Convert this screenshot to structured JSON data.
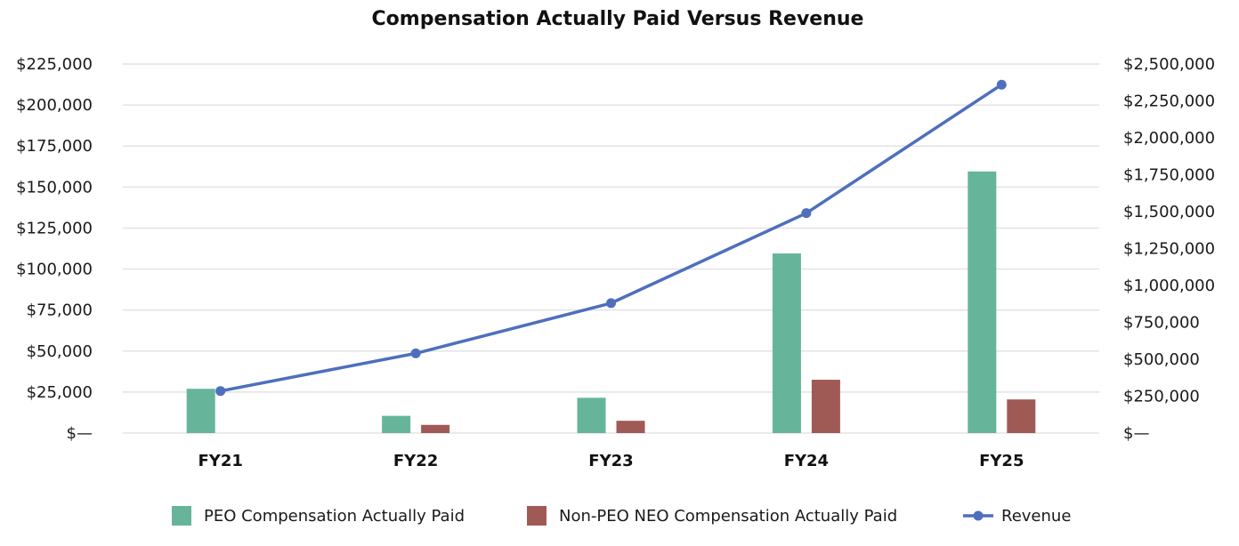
{
  "chart_data": {
    "type": "bar",
    "title": "Compensation Actually Paid Versus Revenue",
    "categories": [
      "FY21",
      "FY22",
      "FY23",
      "FY24",
      "FY25"
    ],
    "left_axis": {
      "ylim": [
        0,
        225000
      ],
      "ticks": [
        0,
        25000,
        50000,
        75000,
        100000,
        125000,
        150000,
        175000,
        200000,
        225000
      ],
      "tick_labels": [
        "$—",
        "$25,000",
        "$50,000",
        "$75,000",
        "$100,000",
        "$125,000",
        "$150,000",
        "$175,000",
        "$200,000",
        "$225,000"
      ]
    },
    "right_axis": {
      "ylim": [
        0,
        2500000
      ],
      "ticks": [
        0,
        250000,
        500000,
        750000,
        1000000,
        1250000,
        1500000,
        1750000,
        2000000,
        2250000,
        2500000
      ],
      "tick_labels": [
        "$—",
        "$250,000",
        "$500,000",
        "$750,000",
        "$1,000,000",
        "$1,250,000",
        "$1,500,000",
        "$1,750,000",
        "$2,000,000",
        "$2,250,000",
        "$2,500,000"
      ]
    },
    "grid": true,
    "legend_position": "bottom",
    "series": [
      {
        "name": "PEO Compensation Actually Paid",
        "kind": "bar",
        "axis": "left",
        "color": "#66b59a",
        "values": [
          27000,
          10500,
          21500,
          109500,
          159500
        ]
      },
      {
        "name": "Non-PEO NEO Compensation Actually Paid",
        "kind": "bar",
        "axis": "left",
        "color": "#a05a56",
        "values": [
          null,
          5000,
          7500,
          32500,
          20500
        ]
      },
      {
        "name": "Revenue",
        "kind": "line",
        "axis": "right",
        "color": "#4e6fbe",
        "values": [
          285000,
          540000,
          880000,
          1490000,
          2360000
        ]
      }
    ]
  }
}
